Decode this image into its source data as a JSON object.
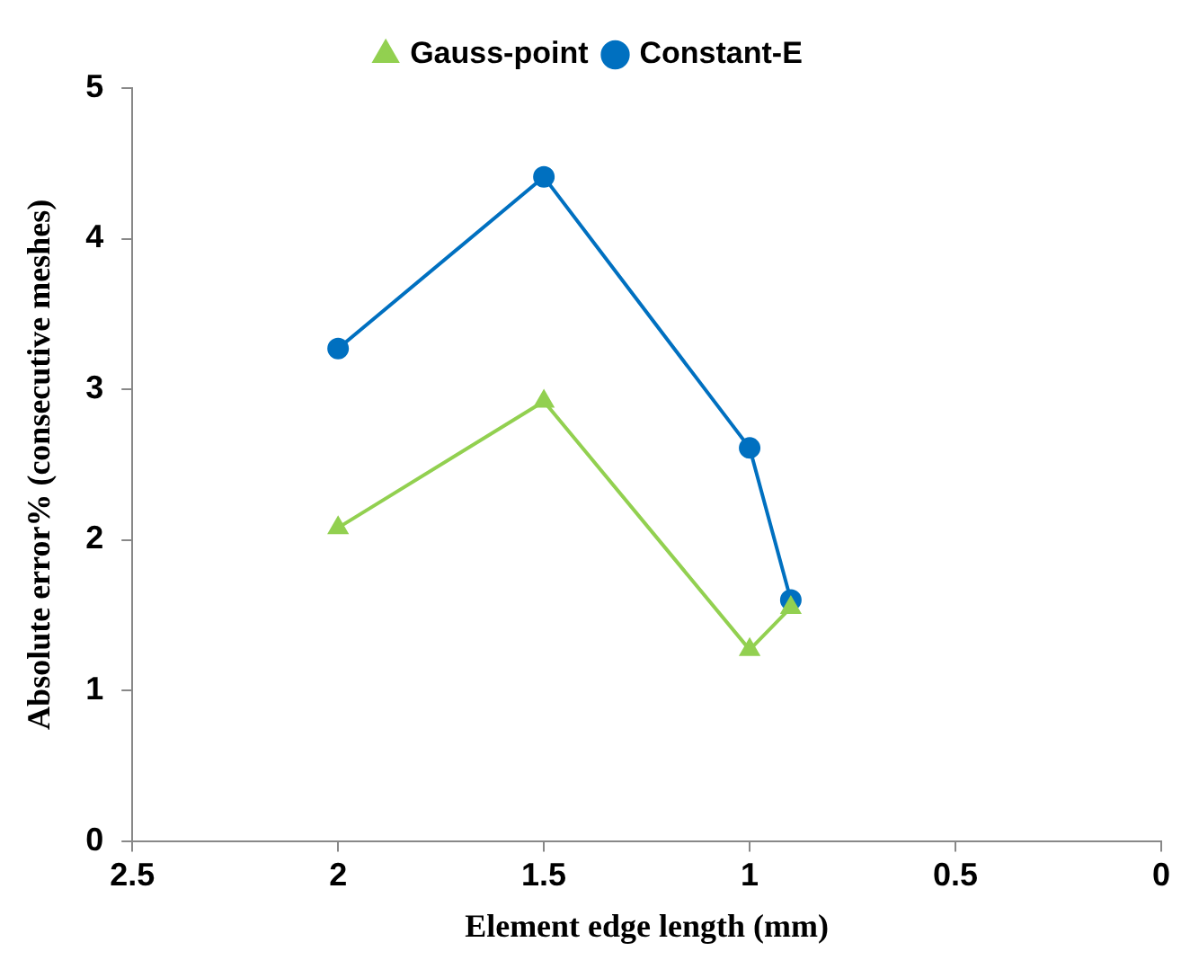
{
  "chart_data": {
    "type": "line",
    "xlabel": "Element edge length (mm)",
    "ylabel": "Absolute error% (consecutive meshes)",
    "x": [
      2,
      1.5,
      1,
      0.9
    ],
    "series": [
      {
        "name": "Constant-E",
        "color": "#0070c0",
        "marker": "circle",
        "values": [
          3.27,
          4.41,
          2.61,
          1.6
        ]
      },
      {
        "name": "Gauss-point",
        "color": "#92d050",
        "marker": "triangle",
        "values": [
          2.08,
          2.92,
          1.27,
          1.55
        ]
      }
    ],
    "xlim": [
      2.5,
      0
    ],
    "xticks": [
      2.5,
      2,
      1.5,
      1,
      0.5,
      0
    ],
    "ylim": [
      0,
      5
    ],
    "yticks": [
      0,
      1,
      2,
      3,
      4,
      5
    ],
    "legend": "top",
    "line_style": "solid"
  }
}
